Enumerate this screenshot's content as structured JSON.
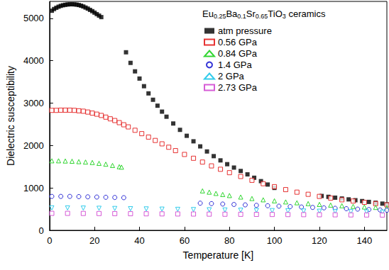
{
  "chart_data": {
    "type": "scatter",
    "annotation": "Eu0.25Ba0.1Sr0.65TiO3 ceramics",
    "x_label": "Temperature [K]",
    "y_label": "Dielectric susceptibility",
    "xlim": [
      0,
      150
    ],
    "xticks": [
      0,
      20,
      40,
      60,
      80,
      100,
      120,
      140
    ],
    "ylim": [
      0,
      5400
    ],
    "yticks": [
      0,
      1000,
      2000,
      3000,
      4000,
      5000
    ],
    "grid": false,
    "legend": "upper right",
    "series": [
      {
        "name": "atm pressure",
        "color": "#000000",
        "marker": "filled_square",
        "x": [
          1,
          2,
          3,
          4,
          5,
          6,
          7,
          8,
          9,
          10,
          11,
          12,
          13,
          14,
          15,
          16,
          17,
          18,
          19,
          20,
          21,
          22,
          23,
          34,
          36,
          38,
          40,
          42,
          44,
          46,
          48,
          50,
          52,
          55,
          58,
          61,
          64,
          67,
          70,
          73,
          76,
          79,
          82,
          85,
          88,
          91,
          94,
          97,
          100,
          121,
          124,
          127,
          130,
          133,
          136,
          139,
          142,
          145,
          148,
          150
        ],
        "values": [
          5180,
          5220,
          5250,
          5275,
          5295,
          5310,
          5320,
          5328,
          5332,
          5333,
          5330,
          5325,
          5315,
          5300,
          5280,
          5255,
          5230,
          5200,
          5170,
          5135,
          5100,
          5065,
          5030,
          4200,
          3950,
          3750,
          3580,
          3400,
          3230,
          3080,
          2940,
          2800,
          2680,
          2520,
          2370,
          2230,
          2100,
          1980,
          1860,
          1750,
          1650,
          1560,
          1480,
          1400,
          1320,
          1240,
          1160,
          1080,
          1000,
          810,
          790,
          770,
          750,
          730,
          710,
          690,
          670,
          650,
          630,
          610
        ]
      },
      {
        "name": "0.56 GPa",
        "color": "#e00000",
        "marker": "open_square",
        "x": [
          1,
          3,
          5,
          7,
          9,
          11,
          13,
          15,
          17,
          19,
          21,
          23,
          25,
          27,
          29,
          31,
          33,
          35,
          38,
          41,
          44,
          47,
          50,
          53,
          56,
          60,
          64,
          68,
          72,
          76,
          80,
          85,
          90,
          95,
          100,
          105,
          110,
          115,
          120,
          125,
          130,
          135,
          140,
          145,
          150
        ],
        "values": [
          2830,
          2830,
          2835,
          2835,
          2835,
          2830,
          2820,
          2810,
          2790,
          2765,
          2740,
          2710,
          2670,
          2630,
          2590,
          2540,
          2490,
          2440,
          2360,
          2280,
          2200,
          2120,
          2040,
          1960,
          1880,
          1790,
          1700,
          1610,
          1520,
          1440,
          1360,
          1270,
          1180,
          1100,
          1030,
          960,
          900,
          850,
          800,
          760,
          720,
          690,
          660,
          630,
          600
        ]
      },
      {
        "name": "0.84 GPa",
        "color": "#00cc00",
        "marker": "open_triangle",
        "x": [
          1,
          4,
          7,
          10,
          13,
          16,
          19,
          22,
          25,
          28,
          31,
          32,
          68,
          71,
          74,
          77,
          80,
          85,
          90,
          95,
          100,
          105,
          110,
          115,
          120,
          125,
          130,
          135,
          140,
          145,
          150
        ],
        "values": [
          1640,
          1640,
          1635,
          1630,
          1620,
          1610,
          1600,
          1580,
          1560,
          1530,
          1500,
          1490,
          930,
          900,
          870,
          845,
          820,
          785,
          750,
          720,
          695,
          670,
          650,
          630,
          610,
          595,
          580,
          565,
          550,
          540,
          530
        ]
      },
      {
        "name": "1.4 GPa",
        "color": "#0000cc",
        "marker": "open_circle",
        "x": [
          1,
          5,
          9,
          13,
          17,
          21,
          25,
          29,
          33,
          67,
          72,
          77,
          82,
          87,
          92,
          97,
          102,
          107,
          112,
          117,
          122,
          127,
          132,
          137,
          142,
          147,
          150
        ],
        "values": [
          800,
          800,
          800,
          795,
          790,
          785,
          780,
          775,
          770,
          640,
          630,
          620,
          610,
          600,
          590,
          580,
          570,
          560,
          550,
          540,
          530,
          520,
          510,
          500,
          490,
          480,
          475
        ]
      },
      {
        "name": "2 GPa",
        "color": "#00bfe6",
        "marker": "open_triangle_down",
        "x": [
          1,
          8,
          15,
          22,
          29,
          36,
          43,
          50,
          57,
          64,
          71,
          78,
          85,
          92,
          99,
          106,
          113,
          120,
          127,
          134,
          141,
          148
        ],
        "values": [
          530,
          528,
          525,
          520,
          515,
          510,
          505,
          500,
          495,
          490,
          485,
          480,
          475,
          470,
          465,
          460,
          455,
          450,
          445,
          440,
          435,
          430
        ]
      },
      {
        "name": "2.73 GPa",
        "color": "#cc33cc",
        "marker": "open_square",
        "x": [
          1,
          8,
          15,
          22,
          29,
          36,
          43,
          50,
          57,
          64,
          71,
          78,
          85,
          92,
          99,
          106,
          113,
          120,
          127,
          134,
          141,
          148
        ],
        "values": [
          400,
          400,
          398,
          396,
          394,
          392,
          390,
          388,
          386,
          384,
          382,
          380,
          378,
          376,
          374,
          372,
          370,
          368,
          366,
          364,
          362,
          360
        ]
      }
    ]
  }
}
